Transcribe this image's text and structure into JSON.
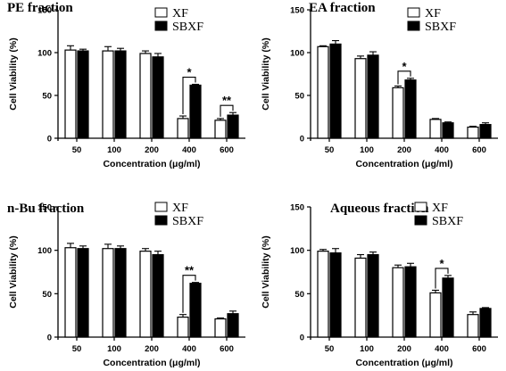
{
  "chart_data": [
    {
      "type": "bar",
      "title": "PE fraction",
      "xlabel": "Concentration (μg/ml)",
      "ylabel": "Cell Viability (%)",
      "ylim": [
        0,
        150
      ],
      "yticks": [
        "0",
        "50",
        "100",
        "150"
      ],
      "categories": [
        "50",
        "100",
        "200",
        "400",
        "600"
      ],
      "series": [
        {
          "name": "XF",
          "values": [
            103,
            102,
            99,
            23,
            21
          ],
          "errors": [
            5,
            5,
            3,
            3,
            2
          ]
        },
        {
          "name": "SBXF",
          "values": [
            102,
            102,
            95,
            62,
            27
          ],
          "errors": [
            2,
            3,
            4,
            1,
            3
          ]
        }
      ],
      "annotations": [
        {
          "category": "400",
          "text": "*"
        },
        {
          "category": "600",
          "text": "**"
        }
      ],
      "legend": "top-right"
    },
    {
      "type": "bar",
      "title": "EA fraction",
      "xlabel": "Concentration (μg/ml)",
      "ylabel": "Cell Viability (%)",
      "ylim": [
        0,
        150
      ],
      "yticks": [
        "0",
        "50",
        "100",
        "150"
      ],
      "categories": [
        "50",
        "100",
        "200",
        "400",
        "600"
      ],
      "series": [
        {
          "name": "XF",
          "values": [
            107,
            93,
            59,
            22,
            13
          ],
          "errors": [
            1,
            3,
            2,
            1,
            1
          ]
        },
        {
          "name": "SBXF",
          "values": [
            110,
            97,
            68,
            18,
            16
          ],
          "errors": [
            4,
            4,
            2,
            1,
            2
          ]
        }
      ],
      "annotations": [
        {
          "category": "200",
          "text": "*"
        }
      ],
      "legend": "top-right"
    },
    {
      "type": "bar",
      "title": "n-Bu fraction",
      "xlabel": "Concentration (μg/ml)",
      "ylabel": "Cell Viability (%)",
      "ylim": [
        0,
        150
      ],
      "yticks": [
        "0",
        "50",
        "100",
        "150"
      ],
      "categories": [
        "50",
        "100",
        "200",
        "400",
        "600"
      ],
      "series": [
        {
          "name": "XF",
          "values": [
            103,
            102,
            99,
            23,
            21
          ],
          "errors": [
            5,
            5,
            3,
            3,
            1
          ]
        },
        {
          "name": "SBXF",
          "values": [
            102,
            102,
            95,
            62,
            27
          ],
          "errors": [
            3,
            3,
            4,
            1,
            3
          ]
        }
      ],
      "annotations": [
        {
          "category": "400",
          "text": "**"
        }
      ],
      "legend": "top-right"
    },
    {
      "type": "bar",
      "title": "Aqueous fraction",
      "xlabel": "Concentration (μg/ml)",
      "ylabel": "Cell Viability (%)",
      "ylim": [
        0,
        150
      ],
      "yticks": [
        "0",
        "50",
        "100",
        "150"
      ],
      "categories": [
        "50",
        "100",
        "200",
        "400",
        "600"
      ],
      "series": [
        {
          "name": "XF",
          "values": [
            99,
            91,
            80,
            51,
            26
          ],
          "errors": [
            2,
            4,
            3,
            3,
            3
          ]
        },
        {
          "name": "SBXF",
          "values": [
            97,
            95,
            81,
            68,
            33
          ],
          "errors": [
            5,
            3,
            4,
            3,
            1
          ]
        }
      ],
      "annotations": [
        {
          "category": "400",
          "text": "*"
        }
      ],
      "legend": "top-right"
    }
  ]
}
